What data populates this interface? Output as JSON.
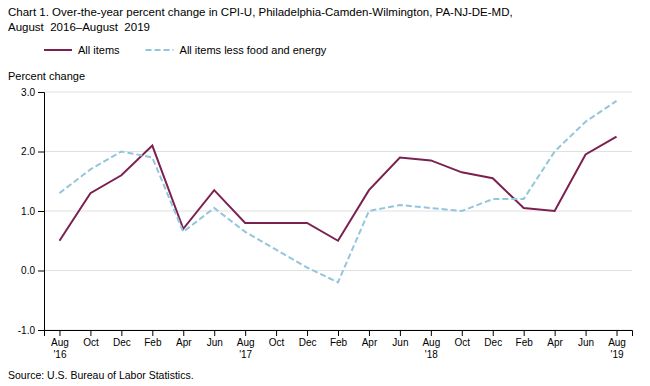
{
  "chart_data": {
    "type": "line",
    "title": "Chart 1. Over-the-year percent change in CPI-U, Philadelphia-Camden-Wilmington, PA-NJ-DE-MD,",
    "subtitle": "August  2016–August  2019",
    "ylabel": "Percent change",
    "source": "Source: U.S. Bureau of Labor Statistics.",
    "categories": [
      "Aug\n'16",
      "Oct",
      "Dec",
      "Feb",
      "Apr",
      "Jun",
      "Aug\n'17",
      "Oct",
      "Dec",
      "Feb",
      "Apr",
      "Jun",
      "Aug\n'18",
      "Oct",
      "Dec",
      "Feb",
      "Apr",
      "Jun",
      "Aug\n'19"
    ],
    "series": [
      {
        "name": "All items",
        "color": "#7B2150",
        "line_style": "solid",
        "values": [
          0.5,
          1.3,
          1.6,
          2.1,
          0.7,
          1.35,
          0.8,
          0.8,
          0.8,
          0.5,
          1.35,
          1.9,
          1.85,
          1.65,
          1.55,
          1.05,
          1.0,
          1.95,
          2.25
        ]
      },
      {
        "name": "All items less food and energy",
        "color": "#92C5DE",
        "line_style": "dashed",
        "values": [
          1.3,
          1.7,
          2.0,
          1.9,
          0.65,
          1.05,
          0.65,
          0.35,
          0.05,
          -0.2,
          1.0,
          1.1,
          1.05,
          1.0,
          1.2,
          1.2,
          2.0,
          2.5,
          2.85
        ]
      }
    ],
    "ylim": [
      -1.0,
      3.0
    ],
    "yticks": [
      {
        "value": -1.0,
        "label": "-1.0"
      },
      {
        "value": 0.0,
        "label": "0.0"
      },
      {
        "value": 1.0,
        "label": "1.0"
      },
      {
        "value": 2.0,
        "label": "2.0"
      },
      {
        "value": 3.0,
        "label": "3.0"
      }
    ],
    "grid": true,
    "legend": "top"
  }
}
